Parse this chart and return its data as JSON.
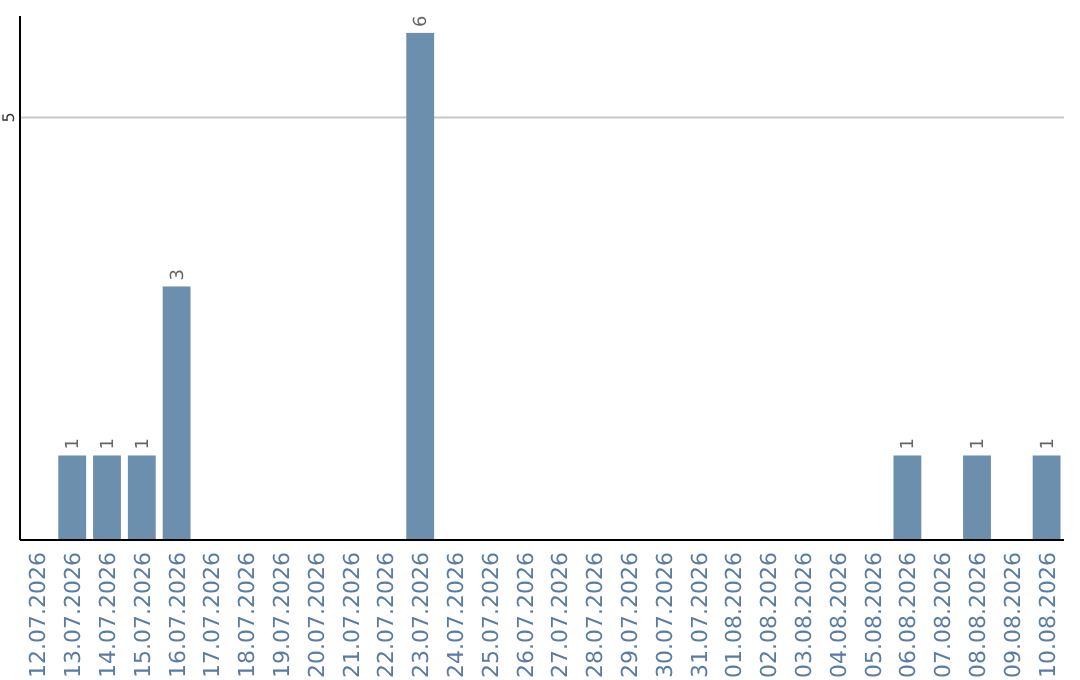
{
  "chart_data": {
    "type": "bar",
    "categories": [
      "12.07.2026",
      "13.07.2026",
      "14.07.2026",
      "15.07.2026",
      "16.07.2026",
      "17.07.2026",
      "18.07.2026",
      "19.07.2026",
      "20.07.2026",
      "21.07.2026",
      "22.07.2026",
      "23.07.2026",
      "24.07.2026",
      "25.07.2026",
      "26.07.2026",
      "27.07.2026",
      "28.07.2026",
      "29.07.2026",
      "30.07.2026",
      "31.07.2026",
      "01.08.2026",
      "02.08.2026",
      "03.08.2026",
      "04.08.2026",
      "05.08.2026",
      "06.08.2026",
      "07.08.2026",
      "08.08.2026",
      "09.08.2026",
      "10.08.2026"
    ],
    "values": [
      0,
      1,
      1,
      1,
      3,
      0,
      0,
      0,
      0,
      0,
      0,
      6,
      0,
      0,
      0,
      0,
      0,
      0,
      0,
      0,
      0,
      0,
      0,
      0,
      0,
      1,
      0,
      1,
      0,
      1
    ],
    "value_labels": [
      null,
      "1",
      "1",
      "1",
      "3",
      null,
      null,
      null,
      null,
      null,
      null,
      "6",
      null,
      null,
      null,
      null,
      null,
      null,
      null,
      null,
      null,
      null,
      null,
      null,
      null,
      "1",
      null,
      "1",
      null,
      "1"
    ],
    "color": "#6d8fae",
    "ylim": [
      0,
      6.2
    ],
    "yticks": [
      5
    ],
    "grid": "y"
  }
}
